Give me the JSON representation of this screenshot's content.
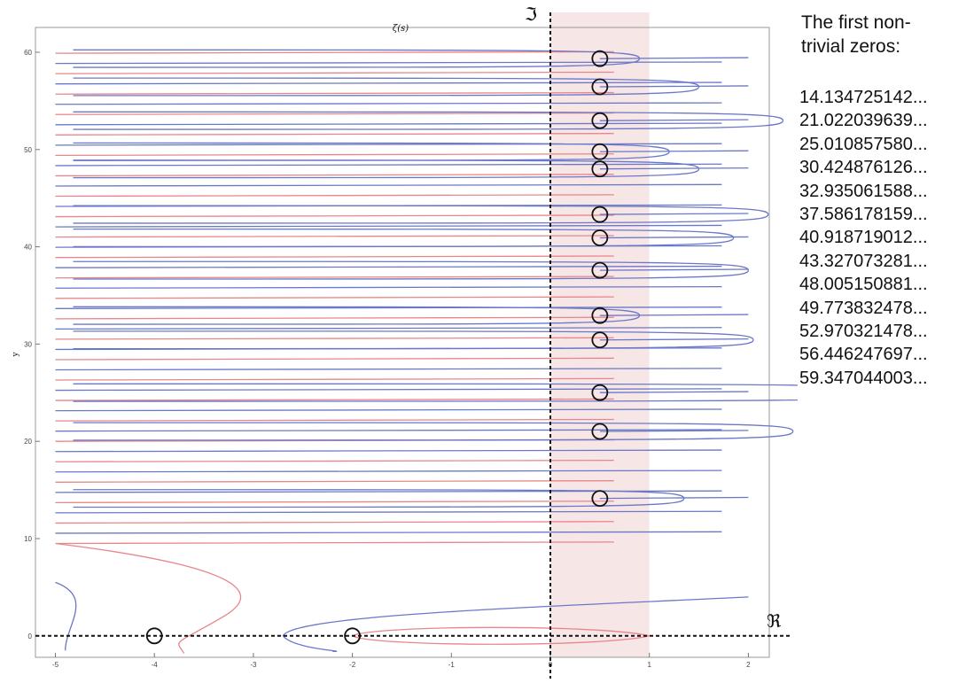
{
  "chart_data": {
    "type": "line",
    "title": "ζ(s)",
    "xlabel": "",
    "ylabel": "y",
    "xlim": [
      -5,
      2
    ],
    "ylim": [
      -3,
      62
    ],
    "x_ticks": [
      -5,
      -4,
      -3,
      -2,
      -1,
      0,
      1,
      2
    ],
    "y_ticks": [
      0,
      10,
      20,
      30,
      40,
      50,
      60
    ],
    "axis_labels": {
      "real": "ℜ",
      "imaginary": "ℑ"
    },
    "critical_strip": {
      "x_from": 0,
      "x_to": 1,
      "color": "#f7e6e6"
    },
    "series": [
      {
        "kind": "real-part-zero-contours",
        "color": "#e8868b"
      },
      {
        "kind": "imaginary-part-zero-contours",
        "color": "#6a78c8"
      }
    ],
    "circled_zeros": [
      {
        "x": -4,
        "y": 0
      },
      {
        "x": -2,
        "y": 0
      },
      {
        "x": 0.5,
        "y": 14.1347
      },
      {
        "x": 0.5,
        "y": 21.022
      },
      {
        "x": 0.5,
        "y": 25.0109
      },
      {
        "x": 0.5,
        "y": 30.4249
      },
      {
        "x": 0.5,
        "y": 32.9351
      },
      {
        "x": 0.5,
        "y": 37.5862
      },
      {
        "x": 0.5,
        "y": 40.9187
      },
      {
        "x": 0.5,
        "y": 43.3271
      },
      {
        "x": 0.5,
        "y": 48.0052
      },
      {
        "x": 0.5,
        "y": 49.7738
      },
      {
        "x": 0.5,
        "y": 52.9703
      },
      {
        "x": 0.5,
        "y": 56.4462
      },
      {
        "x": 0.5,
        "y": 59.347
      }
    ]
  },
  "zeros_panel": {
    "heading": "The first non-trivial zeros:",
    "zeros": [
      "14.134725142...",
      "21.022039639...",
      "25.010857580...",
      "30.424876126...",
      "32.935061588...",
      "37.586178159...",
      "40.918719012...",
      "43.327073281...",
      "48.005150881...",
      "49.773832478...",
      "52.970321478...",
      "56.446247697...",
      "59.347044003..."
    ]
  }
}
